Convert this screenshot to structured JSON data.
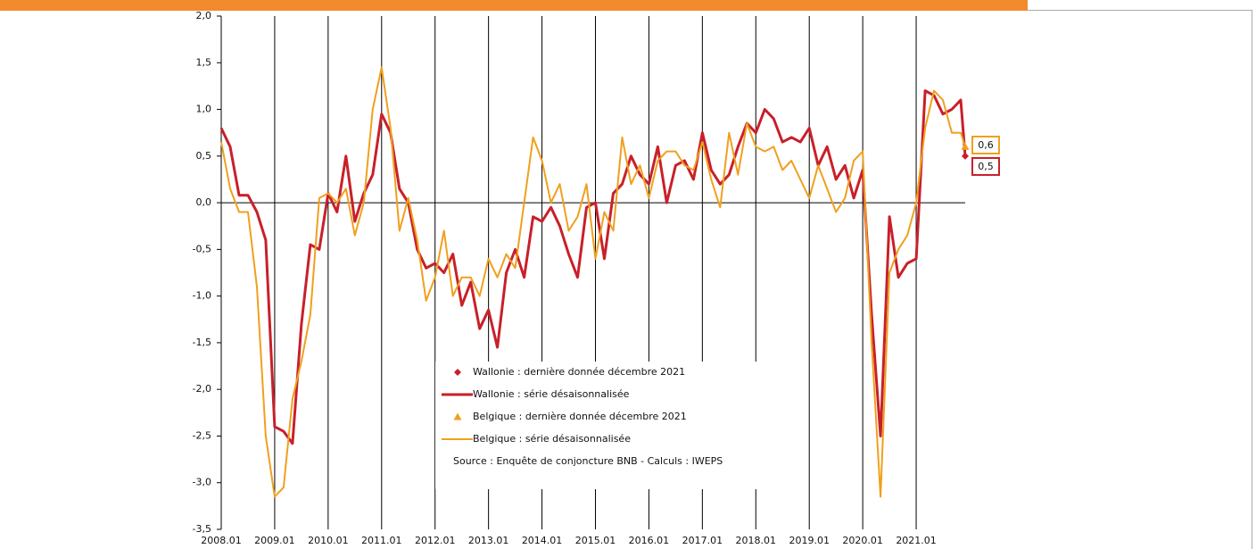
{
  "chart_data": {
    "type": "line",
    "x": [
      0,
      2,
      4,
      6,
      8,
      10,
      12,
      14,
      16,
      18,
      20,
      22,
      24,
      26,
      28,
      30,
      32,
      34,
      36,
      38,
      40,
      42,
      44,
      46,
      48,
      50,
      52,
      54,
      56,
      58,
      60,
      62,
      64,
      66,
      68,
      70,
      72,
      74,
      76,
      78,
      80,
      82,
      84,
      86,
      88,
      90,
      92,
      94,
      96,
      98,
      100,
      102,
      104,
      106,
      108,
      110,
      112,
      114,
      116,
      118,
      120,
      122,
      124,
      126,
      128,
      130,
      132,
      134,
      136,
      138,
      140,
      142,
      144,
      146,
      148,
      150,
      152,
      154,
      156,
      158,
      160,
      162,
      164,
      166,
      167
    ],
    "xlim": [
      0,
      167
    ],
    "xticks": [
      {
        "value": 0,
        "label": "2008.01"
      },
      {
        "value": 12,
        "label": "2009.01"
      },
      {
        "value": 24,
        "label": "2010.01"
      },
      {
        "value": 36,
        "label": "2011.01"
      },
      {
        "value": 48,
        "label": "2012.01"
      },
      {
        "value": 60,
        "label": "2013.01"
      },
      {
        "value": 72,
        "label": "2014.01"
      },
      {
        "value": 84,
        "label": "2015.01"
      },
      {
        "value": 96,
        "label": "2016.01"
      },
      {
        "value": 108,
        "label": "2017.01"
      },
      {
        "value": 120,
        "label": "2018.01"
      },
      {
        "value": 132,
        "label": "2019.01"
      },
      {
        "value": 144,
        "label": "2020.01"
      },
      {
        "value": 156,
        "label": "2021.01"
      }
    ],
    "ylim": [
      -3.5,
      2.0
    ],
    "yticks": [
      {
        "value": 2.0,
        "label": "2,0"
      },
      {
        "value": 1.5,
        "label": "1,5"
      },
      {
        "value": 1.0,
        "label": "1,0"
      },
      {
        "value": 0.5,
        "label": "0,5"
      },
      {
        "value": 0.0,
        "label": "0,0"
      },
      {
        "value": -0.5,
        "label": "-0,5"
      },
      {
        "value": -1.0,
        "label": "-1,0"
      },
      {
        "value": -1.5,
        "label": "-1,5"
      },
      {
        "value": -2.0,
        "label": "-2,0"
      },
      {
        "value": -2.5,
        "label": "-2,5"
      },
      {
        "value": -3.0,
        "label": "-3,0"
      },
      {
        "value": -3.5,
        "label": "-3,5"
      }
    ],
    "series": [
      {
        "name": "Wallonie : série désaisonnalisée",
        "color": "#c8202a",
        "values": [
          0.8,
          0.6,
          0.08,
          0.08,
          -0.1,
          -0.4,
          -2.4,
          -2.45,
          -2.58,
          -1.3,
          -0.45,
          -0.5,
          0.1,
          -0.1,
          0.5,
          -0.2,
          0.1,
          0.3,
          0.95,
          0.75,
          0.15,
          0.0,
          -0.5,
          -0.7,
          -0.65,
          -0.75,
          -0.55,
          -1.1,
          -0.85,
          -1.35,
          -1.15,
          -1.55,
          -0.75,
          -0.5,
          -0.8,
          -0.15,
          -0.2,
          -0.05,
          -0.25,
          -0.55,
          -0.8,
          -0.05,
          0.0,
          -0.6,
          0.1,
          0.2,
          0.5,
          0.3,
          0.2,
          0.6,
          0.0,
          0.4,
          0.45,
          0.25,
          0.75,
          0.35,
          0.2,
          0.3,
          0.6,
          0.85,
          0.75,
          1.0,
          0.9,
          0.65,
          0.7,
          0.65,
          0.8,
          0.4,
          0.6,
          0.25,
          0.4,
          0.05,
          0.35,
          -1.2,
          -2.5,
          -0.15,
          -0.8,
          -0.65,
          -0.6,
          1.2,
          1.15,
          0.95,
          1.0,
          1.1,
          0.5
        ]
      },
      {
        "name": "Belgique : série désaisonnalisée",
        "color": "#f0a01e",
        "values": [
          0.65,
          0.15,
          -0.1,
          -0.1,
          -0.9,
          -2.5,
          -3.15,
          -3.05,
          -2.1,
          -1.7,
          -1.2,
          0.05,
          0.1,
          0.0,
          0.15,
          -0.35,
          0.0,
          1.0,
          1.45,
          0.8,
          -0.3,
          0.05,
          -0.4,
          -1.05,
          -0.8,
          -0.3,
          -1.0,
          -0.8,
          -0.8,
          -1.0,
          -0.6,
          -0.8,
          -0.55,
          -0.7,
          0.0,
          0.7,
          0.45,
          0.0,
          0.2,
          -0.3,
          -0.15,
          0.2,
          -0.6,
          -0.1,
          -0.3,
          0.7,
          0.2,
          0.4,
          0.05,
          0.45,
          0.55,
          0.55,
          0.4,
          0.35,
          0.65,
          0.25,
          -0.05,
          0.75,
          0.3,
          0.85,
          0.6,
          0.55,
          0.6,
          0.35,
          0.45,
          0.25,
          0.05,
          0.4,
          0.15,
          -0.1,
          0.05,
          0.45,
          0.55,
          -1.5,
          -3.15,
          -0.75,
          -0.5,
          -0.35,
          0.0,
          0.8,
          1.2,
          1.1,
          0.75,
          0.75,
          0.6
        ]
      }
    ],
    "markers": [
      {
        "name": "Wallonie : dernière donnée décembre 2021",
        "color": "#c8202a",
        "shape": "diamond",
        "x": 167,
        "value": 0.5,
        "value_label": "0,5"
      },
      {
        "name": "Belgique : dernière donnée décembre 2021",
        "color": "#f0a01e",
        "shape": "triangle",
        "x": 167,
        "value": 0.6,
        "value_label": "0,6"
      }
    ],
    "source": "Source : Enquête de conjoncture BNB - Calculs : IWEPS"
  }
}
